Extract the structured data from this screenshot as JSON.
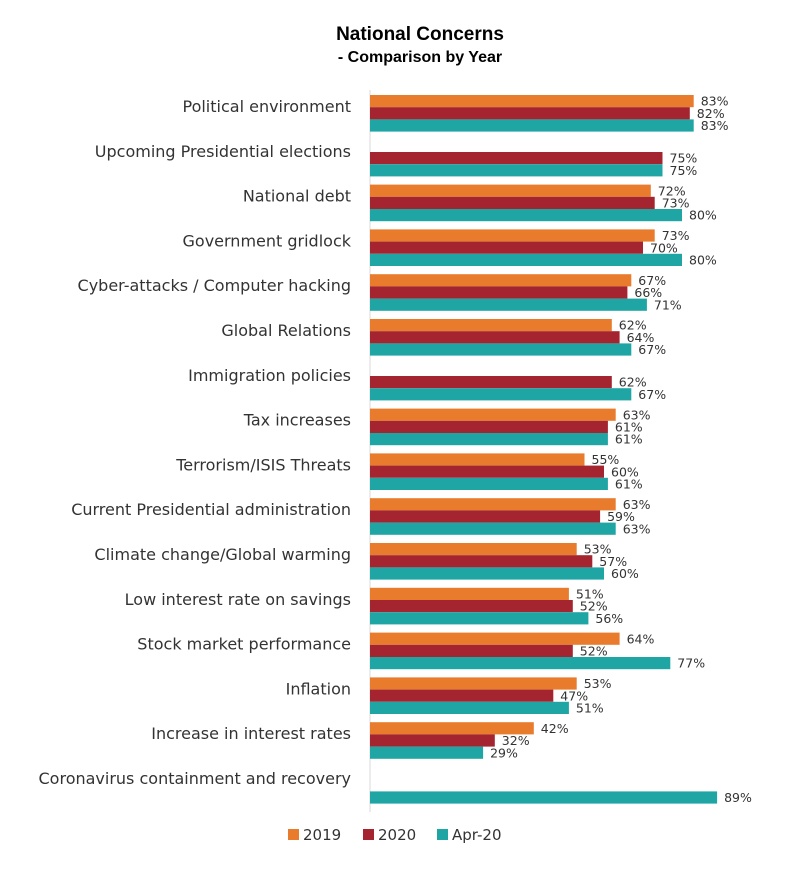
{
  "chart_data": {
    "type": "bar",
    "orientation": "horizontal",
    "title": "National Concerns",
    "subtitle": "- Comparison by Year",
    "categories": [
      "Political environment",
      "Upcoming Presidential elections",
      "National debt",
      "Government gridlock",
      "Cyber-attacks / Computer hacking",
      "Global Relations",
      "Immigration policies",
      "Tax increases",
      "Terrorism/ISIS Threats",
      "Current Presidential administration",
      "Climate change/Global warming",
      "Low interest rate on savings",
      "Stock market performance",
      "Inflation",
      "Increase in interest rates",
      "Coronavirus containment and recovery"
    ],
    "series": [
      {
        "name": "2019",
        "color": "#E87B2C",
        "values": [
          83,
          null,
          72,
          73,
          67,
          62,
          null,
          63,
          55,
          63,
          53,
          51,
          64,
          53,
          42,
          null
        ],
        "labels": [
          "83%",
          "",
          "72%",
          "73%",
          "67%",
          "62%",
          "",
          "63%",
          "55%",
          "63%",
          "53%",
          "51%",
          "64%",
          "53%",
          "42%",
          ""
        ]
      },
      {
        "name": "2020",
        "color": "#A4242F",
        "values": [
          82,
          75,
          73,
          70,
          66,
          64,
          62,
          61,
          60,
          59,
          57,
          52,
          52,
          47,
          32,
          null
        ],
        "labels": [
          "82%",
          "75%",
          "73%",
          "70%",
          "66%",
          "64%",
          "62%",
          "61%",
          "60%",
          "59%",
          "57%",
          "52%",
          "52%",
          "47%",
          "32%",
          ""
        ]
      },
      {
        "name": "Apr-20",
        "color": "#1FA6A4",
        "values": [
          83,
          75,
          80,
          80,
          71,
          67,
          67,
          61,
          61,
          63,
          60,
          56,
          77,
          51,
          29,
          89
        ],
        "labels": [
          "83%",
          "75%",
          "80%",
          "80%",
          "71%",
          "67%",
          "67%",
          "61%",
          "61%",
          "63%",
          "60%",
          "56%",
          "77%",
          "51%",
          "29%",
          "89%"
        ]
      }
    ],
    "xlim": [
      0,
      100
    ],
    "grid": false,
    "legend": "bottom"
  }
}
